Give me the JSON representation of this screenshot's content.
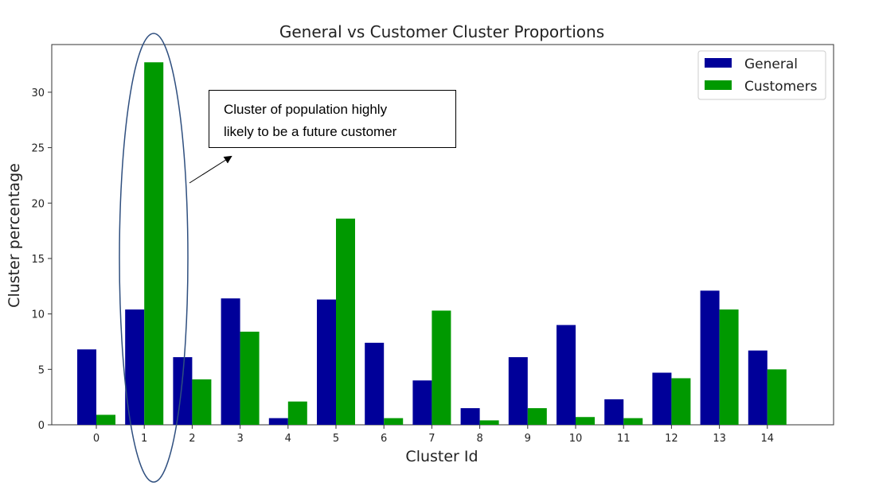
{
  "chart_data": {
    "type": "bar",
    "title": "General vs Customer Cluster Proportions",
    "xlabel": "Cluster Id",
    "ylabel": "Cluster percentage",
    "categories": [
      "0",
      "1",
      "2",
      "3",
      "4",
      "5",
      "6",
      "7",
      "8",
      "9",
      "10",
      "11",
      "12",
      "13",
      "14"
    ],
    "series": [
      {
        "name": "General",
        "color": "#000099",
        "values": [
          6.8,
          10.4,
          6.1,
          11.4,
          0.6,
          11.3,
          7.4,
          4.0,
          1.5,
          6.1,
          9.0,
          2.3,
          4.7,
          12.1,
          6.7
        ]
      },
      {
        "name": "Customers",
        "color": "#009900",
        "values": [
          0.9,
          32.7,
          4.1,
          8.4,
          2.1,
          18.6,
          0.6,
          10.3,
          0.4,
          1.5,
          0.7,
          0.6,
          4.2,
          10.4,
          5.0
        ]
      }
    ],
    "yticks": [
      0,
      5,
      10,
      15,
      20,
      25,
      30
    ],
    "ylim": [
      0,
      34.3
    ],
    "grid": false,
    "legend_position": "top-right",
    "highlighted_category": "1",
    "highlight_color": "#2f4f7f",
    "annotation": {
      "lines": [
        "Cluster of population highly",
        "likely to be a future customer"
      ]
    }
  }
}
